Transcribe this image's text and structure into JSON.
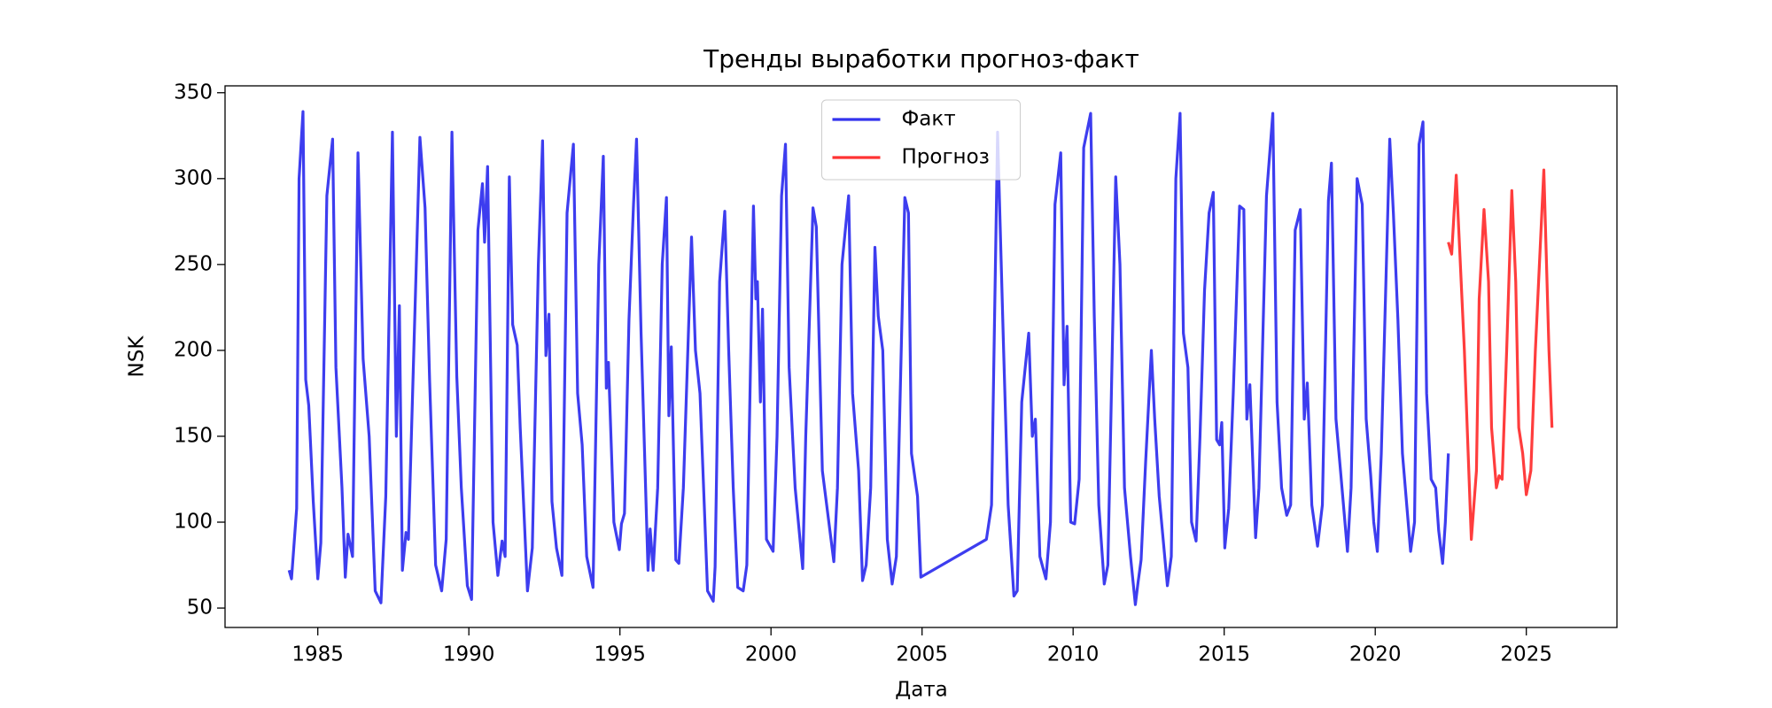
{
  "chart_data": {
    "type": "line",
    "title": "Тренды выработки прогноз-факт",
    "xlabel": "Дата",
    "ylabel": "NSK",
    "xlim": [
      1981.93,
      2028.0
    ],
    "ylim": [
      38.7,
      354
    ],
    "xticks": [
      1985,
      1990,
      1995,
      2000,
      2005,
      2010,
      2015,
      2020,
      2025
    ],
    "yticks": [
      50,
      100,
      150,
      200,
      250,
      300,
      350
    ],
    "legend": "upper center",
    "grid": false,
    "series": [
      {
        "name": "Факт",
        "color": "#3333ee",
        "x": [
          1984.05,
          1984.13,
          1984.3,
          1984.38,
          1984.51,
          1984.6,
          1984.7,
          1984.85,
          1985.0,
          1985.1,
          1985.3,
          1985.49,
          1985.6,
          1985.8,
          1985.91,
          1986.0,
          1986.15,
          1986.33,
          1986.5,
          1986.7,
          1986.9,
          1987.09,
          1987.25,
          1987.47,
          1987.6,
          1987.7,
          1987.8,
          1987.92,
          1988.0,
          1988.38,
          1988.55,
          1988.7,
          1988.9,
          1989.1,
          1989.25,
          1989.44,
          1989.6,
          1989.75,
          1989.95,
          1990.09,
          1990.3,
          1990.45,
          1990.52,
          1990.62,
          1990.8,
          1990.96,
          1991.1,
          1991.2,
          1991.34,
          1991.45,
          1991.6,
          1991.7,
          1991.94,
          1992.1,
          1992.3,
          1992.44,
          1992.55,
          1992.65,
          1992.75,
          1992.9,
          1993.08,
          1993.25,
          1993.46,
          1993.6,
          1993.75,
          1993.9,
          1994.11,
          1994.3,
          1994.45,
          1994.55,
          1994.62,
          1994.8,
          1994.98,
          1995.05,
          1995.15,
          1995.3,
          1995.45,
          1995.55,
          1995.7,
          1995.93,
          1996.0,
          1996.1,
          1996.25,
          1996.4,
          1996.54,
          1996.62,
          1996.7,
          1996.85,
          1996.95,
          1997.1,
          1997.37,
          1997.5,
          1997.65,
          1997.9,
          1998.09,
          1998.15,
          1998.3,
          1998.47,
          1998.6,
          1998.75,
          1998.9,
          1999.08,
          1999.2,
          1999.42,
          1999.5,
          1999.55,
          1999.65,
          1999.72,
          1999.85,
          2000.07,
          2000.2,
          2000.35,
          2000.48,
          2000.6,
          2000.8,
          2001.05,
          2001.15,
          2001.39,
          2001.5,
          2001.7,
          2002.08,
          2002.2,
          2002.35,
          2002.57,
          2002.7,
          2002.9,
          2003.03,
          2003.15,
          2003.3,
          2003.44,
          2003.55,
          2003.7,
          2003.85,
          2004.01,
          2004.15,
          2004.43,
          2004.55,
          2004.65,
          2004.85,
          2004.96,
          2007.13,
          2007.3,
          2007.5,
          2007.7,
          2007.85,
          2008.04,
          2008.15,
          2008.3,
          2008.53,
          2008.65,
          2008.75,
          2008.9,
          2009.1,
          2009.25,
          2009.4,
          2009.59,
          2009.7,
          2009.8,
          2009.92,
          2010.05,
          2010.2,
          2010.35,
          2010.58,
          2010.7,
          2010.85,
          2011.03,
          2011.15,
          2011.25,
          2011.41,
          2011.55,
          2011.7,
          2011.9,
          2012.06,
          2012.15,
          2012.25,
          2012.4,
          2012.59,
          2012.7,
          2012.85,
          2013.12,
          2013.25,
          2013.4,
          2013.54,
          2013.65,
          2013.8,
          2013.92,
          2014.07,
          2014.2,
          2014.35,
          2014.5,
          2014.64,
          2014.75,
          2014.85,
          2014.92,
          2015.02,
          2015.15,
          2015.3,
          2015.51,
          2015.65,
          2015.75,
          2015.85,
          2016.04,
          2016.15,
          2016.4,
          2016.61,
          2016.75,
          2016.9,
          2017.07,
          2017.2,
          2017.35,
          2017.52,
          2017.65,
          2017.75,
          2017.9,
          2018.09,
          2018.25,
          2018.45,
          2018.55,
          2018.7,
          2018.85,
          2019.08,
          2019.2,
          2019.4,
          2019.57,
          2019.7,
          2019.85,
          2019.95,
          2020.07,
          2020.2,
          2020.48,
          2020.6,
          2020.75,
          2020.9,
          2021.17,
          2021.3,
          2021.45,
          2021.58,
          2021.7,
          2021.85,
          2022.0,
          2022.1,
          2022.23,
          2022.32,
          2022.42
        ],
        "values": [
          72,
          67,
          108,
          300,
          339,
          183,
          168,
          112,
          67,
          88,
          290,
          323,
          190,
          120,
          68,
          93,
          80,
          315,
          195,
          150,
          60,
          53,
          115,
          327,
          150,
          226,
          72,
          94,
          90,
          324,
          283,
          183,
          75,
          60,
          90,
          327,
          185,
          120,
          63,
          55,
          270,
          297,
          263,
          307,
          100,
          69,
          89,
          80,
          301,
          215,
          203,
          155,
          60,
          85,
          250,
          322,
          197,
          221,
          112,
          85,
          69,
          280,
          320,
          175,
          145,
          80,
          62,
          250,
          313,
          178,
          193,
          100,
          84,
          99,
          105,
          218,
          285,
          323,
          210,
          72,
          96,
          72,
          120,
          250,
          289,
          162,
          202,
          78,
          76,
          120,
          266,
          200,
          175,
          60,
          54,
          74,
          240,
          281,
          200,
          120,
          62,
          60,
          75,
          284,
          230,
          240,
          170,
          224,
          90,
          83,
          150,
          290,
          320,
          190,
          120,
          73,
          150,
          283,
          272,
          130,
          77,
          120,
          250,
          290,
          175,
          130,
          66,
          75,
          120,
          260,
          220,
          200,
          90,
          64,
          80,
          289,
          280,
          140,
          115,
          68,
          90,
          110,
          327,
          200,
          110,
          57,
          60,
          170,
          210,
          150,
          160,
          80,
          67,
          100,
          285,
          315,
          180,
          214,
          100,
          99,
          125,
          318,
          338,
          220,
          110,
          64,
          75,
          160,
          301,
          250,
          120,
          80,
          52,
          65,
          78,
          135,
          200,
          160,
          115,
          63,
          80,
          300,
          338,
          210,
          190,
          100,
          89,
          150,
          235,
          280,
          292,
          148,
          145,
          158,
          85,
          108,
          175,
          284,
          282,
          160,
          180,
          91,
          120,
          290,
          338,
          170,
          120,
          104,
          110,
          270,
          282,
          160,
          181,
          110,
          86,
          110,
          287,
          309,
          160,
          130,
          83,
          120,
          300,
          285,
          160,
          127,
          100,
          83,
          140,
          323,
          280,
          218,
          140,
          83,
          100,
          320,
          333,
          175,
          125,
          120,
          95,
          76,
          100,
          140
        ]
      },
      {
        "name": "Прогноз",
        "color": "#ff3333",
        "x": [
          2022.42,
          2022.53,
          2022.68,
          2022.95,
          2023.18,
          2023.35,
          2023.44,
          2023.6,
          2023.75,
          2023.85,
          2024.01,
          2024.1,
          2024.2,
          2024.35,
          2024.52,
          2024.65,
          2024.75,
          2024.88,
          2025.0,
          2025.15,
          2025.3,
          2025.58,
          2025.75,
          2025.85
        ],
        "values": [
          263,
          256,
          302,
          200,
          90,
          130,
          230,
          282,
          240,
          155,
          120,
          127,
          125,
          200,
          293,
          240,
          155,
          140,
          116,
          130,
          200,
          305,
          200,
          155
        ]
      }
    ]
  }
}
